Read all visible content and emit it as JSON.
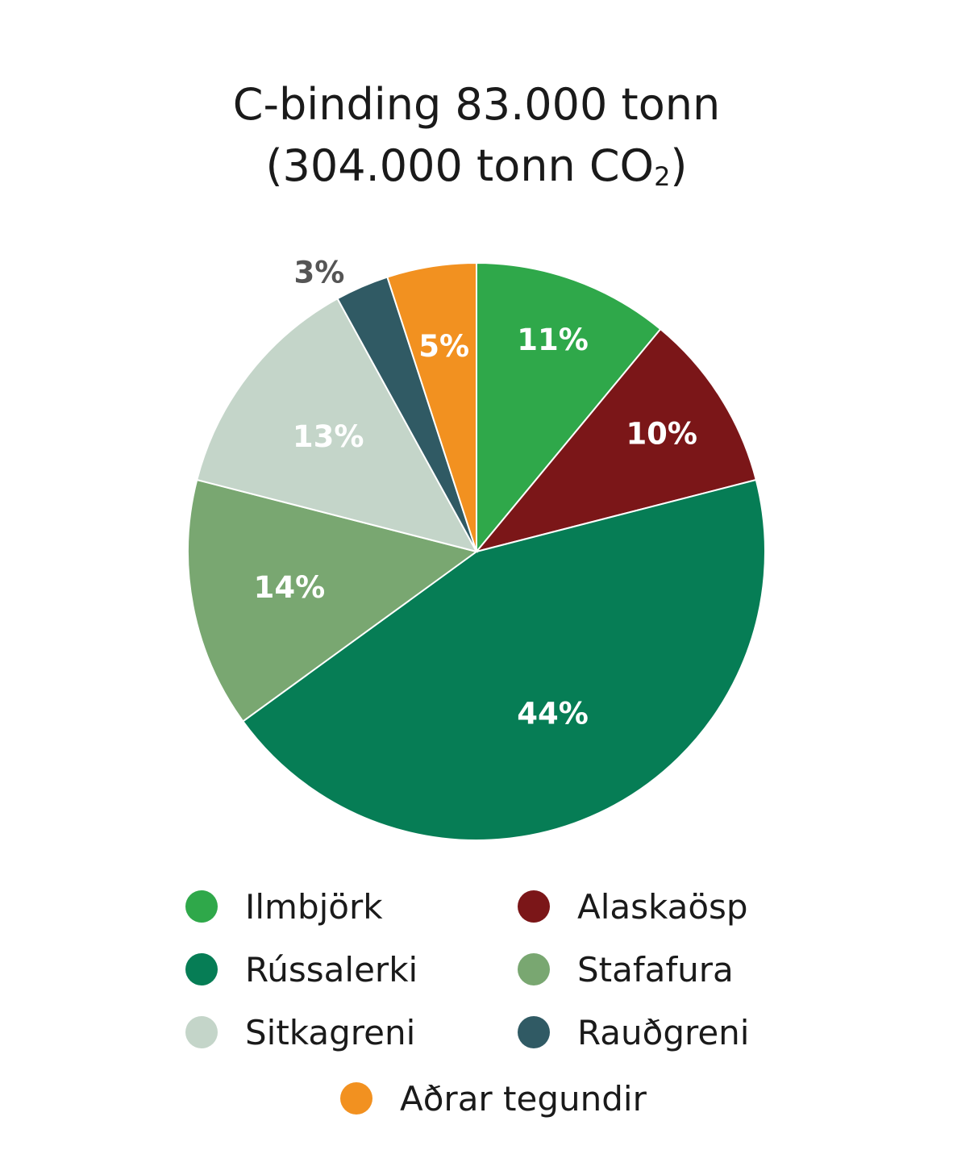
{
  "chart_data": {
    "type": "pie",
    "title_line1": "C-binding 83.000 tonn",
    "title_line2_prefix": "(304.000 tonn CO",
    "title_line2_subscript": "2",
    "title_line2_suffix": ")",
    "slices": [
      {
        "name": "Ilmbjörk",
        "value": 11,
        "label": "11%",
        "color": "#2fa84a",
        "label_color": "#ffffff"
      },
      {
        "name": "Alaskaösp",
        "value": 10,
        "label": "10%",
        "color": "#7b1618",
        "label_color": "#ffffff"
      },
      {
        "name": "Rússalerki",
        "value": 44,
        "label": "44%",
        "color": "#067d55",
        "label_color": "#ffffff"
      },
      {
        "name": "Stafafura",
        "value": 14,
        "label": "14%",
        "color": "#79a771",
        "label_color": "#ffffff"
      },
      {
        "name": "Sitkagreni",
        "value": 13,
        "label": "13%",
        "color": "#c4d5c9",
        "label_color": "#ffffff"
      },
      {
        "name": "Rauðgreni",
        "value": 3,
        "label": "3%",
        "color": "#305a64",
        "label_color": "#555555"
      },
      {
        "name": "Aðrar tegundir",
        "value": 5,
        "label": "5%",
        "color": "#f29120",
        "label_color": "#ffffff"
      }
    ],
    "legend": [
      {
        "label": "Ilmbjörk",
        "color": "#2fa84a"
      },
      {
        "label": "Alaskaösp",
        "color": "#7b1618"
      },
      {
        "label": "Rússalerki",
        "color": "#067d55"
      },
      {
        "label": "Stafafura",
        "color": "#79a771"
      },
      {
        "label": "Sitkagreni",
        "color": "#c4d5c9"
      },
      {
        "label": "Rauðgreni",
        "color": "#305a64"
      },
      {
        "label": "Aðrar tegundir",
        "color": "#f29120"
      }
    ],
    "legend_placement": "bottom"
  }
}
